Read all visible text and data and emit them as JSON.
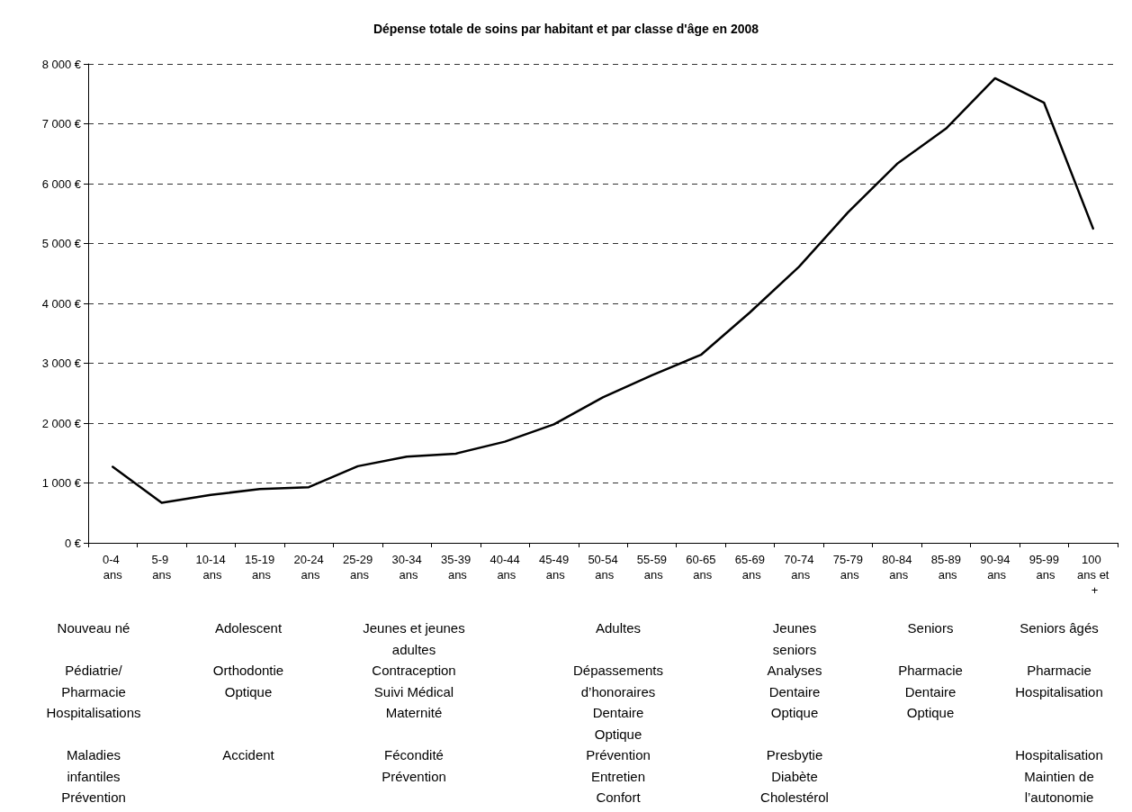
{
  "chart_data": {
    "type": "line",
    "title": "Dépense totale de soins par habitant et par classe d'âge en 2008",
    "categories": [
      "0-4 ans",
      "5-9 ans",
      "10-14 ans",
      "15-19 ans",
      "20-24 ans",
      "25-29 ans",
      "30-34 ans",
      "35-39 ans",
      "40-44 ans",
      "45-49 ans",
      "50-54 ans",
      "55-59 ans",
      "60-65 ans",
      "65-69 ans",
      "70-74 ans",
      "75-79 ans",
      "80-84 ans",
      "85-89 ans",
      "90-94 ans",
      "95-99 ans",
      "100 ans et +"
    ],
    "series": [
      {
        "color": "#000000",
        "values": [
          1270,
          670,
          800,
          900,
          930,
          1280,
          1440,
          1490,
          1690,
          1980,
          2430,
          2800,
          3140,
          3850,
          4610,
          5520,
          6330,
          6920,
          7760,
          7350,
          5250
        ]
      }
    ],
    "ylim": [
      0,
      8000
    ],
    "yticks": [
      {
        "value": 0,
        "label": "0 €"
      },
      {
        "value": 1000,
        "label": "1 000 €"
      },
      {
        "value": 2000,
        "label": "2 000 €"
      },
      {
        "value": 3000,
        "label": "3 000 €"
      },
      {
        "value": 4000,
        "label": "4 000 €"
      },
      {
        "value": 5000,
        "label": "5 000 €"
      },
      {
        "value": 6000,
        "label": "6 000 €"
      },
      {
        "value": 7000,
        "label": "7 000 €"
      },
      {
        "value": 8000,
        "label": "8 000 €"
      }
    ],
    "grid": "y",
    "marker": "none",
    "line_style": "solid",
    "annotations": [
      "Nouveau né\n\nPédiatrie/\nPharmacie\nHospitalisations\n\nMaladies\ninfantiles\nPrévention",
      "Adolescent\n\nOrthodontie\nOptique\n\nAccident",
      "Jeunes et jeunes\nadultes\n\nContraception\nSuivi Médical\nMaternité\n\nFécondité\nPrévention",
      "Adultes\n\nDépassements\nd’honoraires\nDentaire\nOptique\n\nPrévention\nEntretien\nConfort",
      "Jeunes\nseniors\n\nAnalyses\nDentaire\nOptique\n\nPresbytie\nDiabète\nCholestérol",
      "Seniors\n\nPharmacie\nDentaire\nOptique",
      "Seniors âgés\n\nPharmacie\nHospitalisation\n\nHospitalisation\nMaintien de\nl’autonomie"
    ]
  }
}
